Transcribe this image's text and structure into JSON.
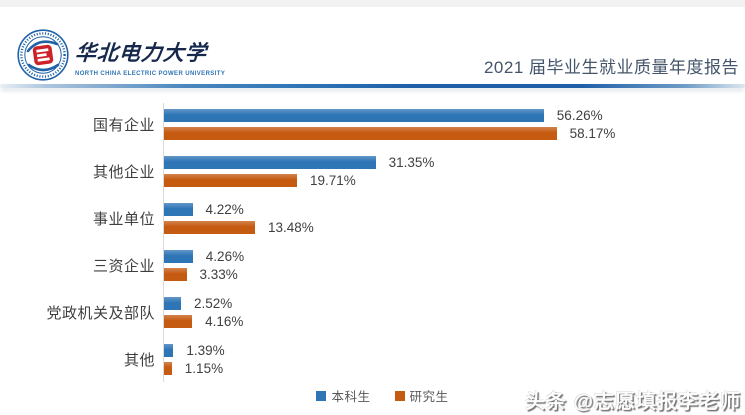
{
  "header": {
    "university_cn": "华北电力大学",
    "university_en": "NORTH CHINA ELECTRIC POWER UNIVERSITY",
    "report_title": "2021 届毕业生就业质量年度报告"
  },
  "chart_data": {
    "type": "bar",
    "orientation": "horizontal",
    "categories": [
      "国有企业",
      "其他企业",
      "事业单位",
      "三资企业",
      "党政机关及部队",
      "其他"
    ],
    "series": [
      {
        "name": "本科生",
        "color": "#2E75B6",
        "values": [
          56.26,
          31.35,
          4.22,
          4.26,
          2.52,
          1.39
        ]
      },
      {
        "name": "研究生",
        "color": "#C55A11",
        "values": [
          58.17,
          19.71,
          13.48,
          3.33,
          4.16,
          1.15
        ]
      }
    ],
    "value_suffix": "%",
    "xlim": [
      0,
      60
    ],
    "grid": false,
    "legend_position": "bottom",
    "title": "",
    "xlabel": "",
    "ylabel": ""
  },
  "watermark": {
    "text": "头条 @志愿填报李老师"
  },
  "colors": {
    "bar_blue": "#2E75B6",
    "bar_orange": "#C55A11",
    "axis_line": "#D9D9D9",
    "label_text": "#404040",
    "legend_text": "#595959",
    "report_title_text": "#44546A",
    "divider_blue": "#1F5FA8",
    "logo_blue": "#2062A8",
    "logo_red": "#CC2229"
  }
}
